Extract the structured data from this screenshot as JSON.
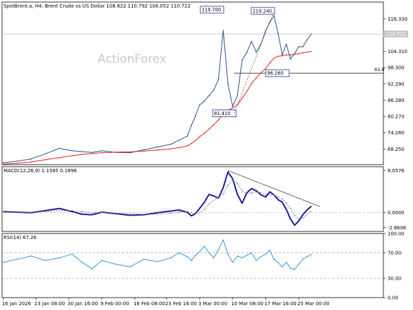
{
  "chart_data": [
    {
      "panel": "price",
      "type": "line",
      "title": "SpotBrent.a, H4:  Brent Crude vs US Dollar  108.622 110.792 108.052 110.722",
      "watermark": "ActionForex",
      "ylim": [
        62.5,
        122.5
      ],
      "yticks": [
        116.33,
        110.722,
        104.31,
        98.3,
        92.29,
        86.28,
        80.27,
        74.26,
        68.25
      ],
      "ytick_labels": [
        "116.330",
        "110.722",
        "104.310",
        "98.300",
        "92.290",
        "86.280",
        "80.270",
        "74.260",
        "68.250"
      ],
      "current_price": 110.722,
      "horizontal_line": {
        "value": 96.26,
        "label": "61.8"
      },
      "callouts": [
        "119.700",
        "119.240",
        "81.410",
        "96.260"
      ],
      "callout_values": [
        119.7,
        119.24,
        81.41,
        96.26
      ],
      "x": [
        "2026-01-16",
        "2026-01-19",
        "2026-01-22",
        "2026-01-25",
        "2026-01-28",
        "2026-01-31",
        "2026-02-03",
        "2026-02-06",
        "2026-02-09",
        "2026-02-12",
        "2026-02-15",
        "2026-02-18",
        "2026-02-21",
        "2026-02-24",
        "2026-02-26",
        "2026-02-28",
        "2026-03-01",
        "2026-03-02",
        "2026-03-03",
        "2026-03-04",
        "2026-03-05",
        "2026-03-06",
        "2026-03-07",
        "2026-03-08",
        "2026-03-09",
        "2026-03-10",
        "2026-03-11",
        "2026-03-12",
        "2026-03-13",
        "2026-03-14",
        "2026-03-15",
        "2026-03-16",
        "2026-03-17",
        "2026-03-18",
        "2026-03-19",
        "2026-03-20",
        "2026-03-21",
        "2026-03-22",
        "2026-03-23",
        "2026-03-24",
        "2026-03-25",
        "2026-03-26",
        "2026-03-27",
        "2026-03-28"
      ],
      "series": [
        {
          "color": "#2a4f8f",
          "values": [
            63.2,
            63.8,
            64.6,
            66.5,
            68.5,
            67.6,
            67.3,
            67.0,
            67.6,
            67.0,
            66.9,
            68.0,
            69.0,
            70.0,
            71.5,
            73.0,
            77.0,
            80.5,
            84.5,
            86.0,
            88.0,
            90.0,
            94.0,
            112.0,
            92.5,
            84.0,
            88.0,
            101.0,
            104.0,
            108.0,
            104.0,
            107.0,
            112.0,
            115.0,
            117.5,
            111.0,
            103.0,
            107.0,
            101.5,
            103.5,
            106.0,
            106.0,
            108.5,
            110.7
          ]
        },
        {
          "color": "#e02020",
          "values": [
            62.7,
            63.0,
            63.5,
            64.3,
            65.1,
            65.8,
            66.3,
            66.6,
            66.9,
            67.1,
            67.2,
            67.5,
            67.9,
            68.3,
            68.8,
            69.4,
            70.3,
            71.4,
            72.8,
            74.1,
            75.6,
            77.2,
            79.0,
            81.5,
            82.5,
            83.4,
            84.6,
            87.0,
            89.5,
            92.5,
            94.5,
            96.4,
            98.0,
            100.0,
            101.8,
            102.5,
            102.7,
            103.0,
            103.0,
            103.2,
            103.5,
            103.8,
            104.0,
            104.3
          ]
        }
      ]
    },
    {
      "panel": "macd",
      "type": "line",
      "title": "MACD(12,26,9) 1.1585 0.1896",
      "ylim": [
        -3.6,
        8.8
      ],
      "yticks": [
        8.0576,
        0.0,
        -2.8606
      ],
      "ytick_labels": [
        "8.0576",
        "0.0000",
        "-2.8606"
      ],
      "x": [
        "2026-01-16",
        "2026-01-19",
        "2026-01-22",
        "2026-01-25",
        "2026-01-28",
        "2026-01-31",
        "2026-02-03",
        "2026-02-06",
        "2026-02-09",
        "2026-02-12",
        "2026-02-15",
        "2026-02-18",
        "2026-02-21",
        "2026-02-24",
        "2026-02-26",
        "2026-02-28",
        "2026-03-01",
        "2026-03-02",
        "2026-03-03",
        "2026-03-04",
        "2026-03-05",
        "2026-03-06",
        "2026-03-07",
        "2026-03-08",
        "2026-03-09",
        "2026-03-10",
        "2026-03-11",
        "2026-03-12",
        "2026-03-13",
        "2026-03-14",
        "2026-03-15",
        "2026-03-16",
        "2026-03-17",
        "2026-03-18",
        "2026-03-19",
        "2026-03-20",
        "2026-03-21",
        "2026-03-22",
        "2026-03-23",
        "2026-03-24",
        "2026-03-25",
        "2026-03-26",
        "2026-03-27",
        "2026-03-28"
      ],
      "series": [
        {
          "color": "#1a1aa0",
          "values": [
            0.2,
            0.1,
            0.0,
            0.4,
            0.8,
            0.2,
            -0.3,
            -0.4,
            0.1,
            -0.2,
            -0.5,
            -0.4,
            0.0,
            0.3,
            0.5,
            0.1,
            -0.6,
            -0.2,
            0.8,
            2.0,
            3.5,
            3.2,
            2.8,
            4.8,
            7.8,
            6.5,
            3.5,
            1.8,
            3.8,
            4.6,
            4.2,
            3.4,
            3.0,
            4.0,
            3.4,
            2.5,
            2.0,
            0.6,
            -1.2,
            -2.4,
            -1.6,
            -0.4,
            0.5,
            1.2
          ]
        },
        {
          "color": "#7f7f7f",
          "values": [
            0.1,
            0.1,
            0.1,
            0.2,
            0.4,
            0.4,
            0.2,
            0.0,
            0.0,
            -0.1,
            -0.2,
            -0.3,
            -0.3,
            -0.1,
            0.1,
            0.2,
            0.0,
            -0.2,
            0.0,
            0.6,
            1.6,
            2.4,
            3.0,
            3.6,
            5.2,
            6.3,
            5.6,
            4.2,
            3.6,
            3.8,
            4.0,
            3.8,
            3.5,
            3.4,
            3.4,
            3.0,
            2.6,
            1.9,
            0.8,
            -0.5,
            -1.2,
            -1.0,
            -0.4,
            0.2
          ]
        }
      ],
      "trendline": {
        "from": 8.0576,
        "to": 1.1585
      }
    },
    {
      "panel": "rsi",
      "type": "line",
      "title": "RSI(14) 67.26",
      "ylim": [
        0,
        100
      ],
      "yticks": [
        100,
        70,
        30,
        0
      ],
      "ytick_labels": [
        "100.00",
        "70.00",
        "30.00",
        "0.00"
      ],
      "levels": [
        70,
        30
      ],
      "x": [
        "2026-01-16",
        "2026-01-19",
        "2026-01-22",
        "2026-01-25",
        "2026-01-28",
        "2026-01-31",
        "2026-02-03",
        "2026-02-06",
        "2026-02-09",
        "2026-02-12",
        "2026-02-15",
        "2026-02-18",
        "2026-02-21",
        "2026-02-24",
        "2026-02-26",
        "2026-02-28",
        "2026-03-01",
        "2026-03-02",
        "2026-03-03",
        "2026-03-04",
        "2026-03-05",
        "2026-03-06",
        "2026-03-07",
        "2026-03-08",
        "2026-03-09",
        "2026-03-10",
        "2026-03-11",
        "2026-03-12",
        "2026-03-13",
        "2026-03-14",
        "2026-03-15",
        "2026-03-16",
        "2026-03-17",
        "2026-03-18",
        "2026-03-19",
        "2026-03-20",
        "2026-03-21",
        "2026-03-22",
        "2026-03-23",
        "2026-03-24",
        "2026-03-25",
        "2026-03-26",
        "2026-03-27",
        "2026-03-28"
      ],
      "series": [
        {
          "color": "#3399dd",
          "values": [
            55,
            60,
            65,
            58,
            62,
            68,
            55,
            45,
            58,
            52,
            48,
            60,
            56,
            62,
            70,
            64,
            58,
            66,
            72,
            80,
            70,
            62,
            75,
            90,
            68,
            55,
            65,
            62,
            66,
            70,
            58,
            64,
            68,
            74,
            60,
            55,
            48,
            55,
            46,
            44,
            52,
            60,
            64,
            67.26
          ]
        }
      ]
    }
  ],
  "x_axis": {
    "tick_labels": [
      "16 Jan 2026",
      "23 Jan 08:00",
      "30 Jan 16:00",
      "9 Feb 00:00",
      "16 Feb 08:00",
      "23 Feb 16:00",
      "3 Mar 00:00",
      "10 Mar 08:00",
      "17 Mar 16:00",
      "25 Mar 00:00"
    ],
    "tick_values": [
      "2026-01-16",
      "2026-01-23",
      "2026-01-30",
      "2026-02-09",
      "2026-02-16",
      "2026-02-23",
      "2026-03-03",
      "2026-03-10",
      "2026-03-17",
      "2026-03-25"
    ]
  },
  "colors": {
    "price": "#2a4f8f",
    "moving_average": "#e02020",
    "macd": "#1a1aa0",
    "signal": "#7f7f7f",
    "rsi": "#3399dd",
    "grid": "#d8d8d8",
    "axis": "#000000",
    "current_price_tag": "#c8c8c8"
  }
}
